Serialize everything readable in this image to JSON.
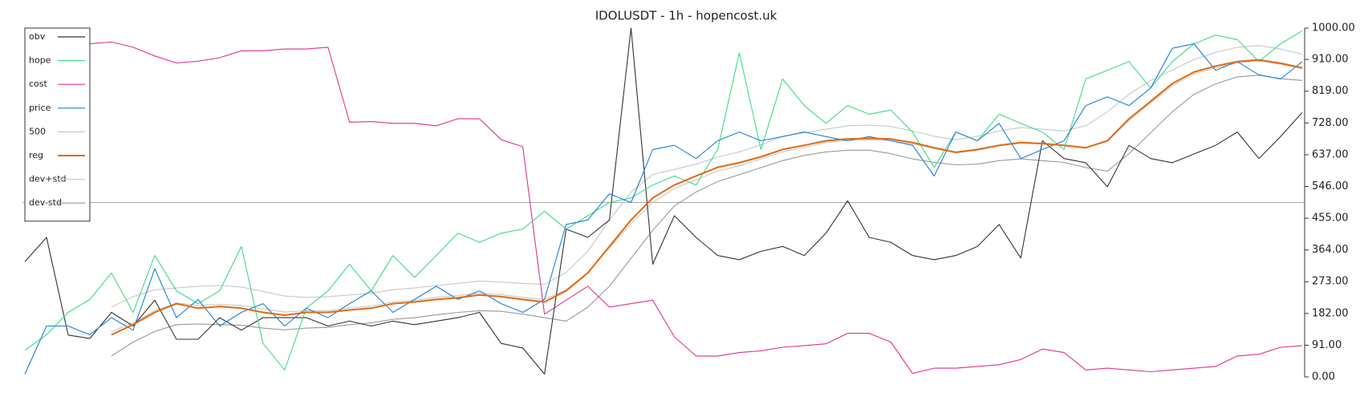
{
  "chart_data": {
    "type": "line",
    "title": "IDOLUSDT - 1h - hopencost.uk",
    "ylim": [
      0,
      1000
    ],
    "yticks": [
      {
        "value": 0,
        "label": "0.00"
      },
      {
        "value": 91,
        "label": "91.00"
      },
      {
        "value": 182,
        "label": "182.00"
      },
      {
        "value": 273,
        "label": "273.00"
      },
      {
        "value": 364,
        "label": "364.00"
      },
      {
        "value": 455,
        "label": "455.00"
      },
      {
        "value": 546,
        "label": "546.00"
      },
      {
        "value": 637,
        "label": "637.00"
      },
      {
        "value": 728,
        "label": "728.00"
      },
      {
        "value": 819,
        "label": "819.00"
      },
      {
        "value": 910,
        "label": "910.00"
      },
      {
        "value": 1000,
        "label": "1000.00"
      }
    ],
    "reference_line": 500,
    "legend": "upper-left",
    "series": [
      {
        "name": "obv",
        "color": "#333333",
        "values": [
          330,
          400,
          120,
          110,
          185,
          146,
          220,
          108,
          108,
          170,
          134,
          170,
          170,
          170,
          146,
          160,
          146,
          160,
          150,
          160,
          170,
          185,
          96,
          83,
          8,
          424,
          400,
          450,
          1000,
          323,
          462,
          400,
          348,
          336,
          360,
          374,
          348,
          412,
          505,
          400,
          386,
          348,
          336,
          348,
          374,
          437,
          341,
          677,
          626,
          614,
          545,
          664,
          626,
          614,
          639,
          664,
          702,
          626,
          689,
          758
        ]
      },
      {
        "name": "hope",
        "color": "#3ddc84",
        "values": [
          76,
          121,
          185,
          222,
          298,
          185,
          348,
          247,
          210,
          247,
          374,
          96,
          20,
          197,
          247,
          323,
          247,
          348,
          285,
          348,
          412,
          386,
          412,
          424,
          475,
          424,
          462,
          500,
          513,
          550,
          576,
          550,
          652,
          929,
          652,
          854,
          778,
          727,
          778,
          753,
          765,
          702,
          601,
          702,
          677,
          753,
          727,
          702,
          652,
          854,
          879,
          904,
          828,
          904,
          955,
          980,
          967,
          904,
          955,
          992
        ]
      },
      {
        "name": "cost",
        "color": "#e0338f",
        "values": [
          null,
          null,
          null,
          955,
          960,
          945,
          920,
          900,
          905,
          915,
          935,
          935,
          940,
          940,
          945,
          730,
          732,
          727,
          727,
          720,
          740,
          740,
          680,
          660,
          180,
          220,
          260,
          200,
          210,
          220,
          115,
          60,
          60,
          70,
          75,
          85,
          90,
          95,
          125,
          125,
          100,
          10,
          25,
          25,
          30,
          35,
          50,
          80,
          70,
          20,
          25,
          20,
          15,
          20,
          25,
          30,
          60,
          65,
          85,
          90
        ]
      },
      {
        "name": "price",
        "color": "#1f7fd8",
        "values": [
          8,
          146,
          146,
          121,
          170,
          134,
          310,
          170,
          222,
          146,
          185,
          210,
          146,
          197,
          170,
          210,
          247,
          185,
          222,
          260,
          222,
          247,
          210,
          185,
          222,
          437,
          450,
          525,
          500,
          652,
          664,
          626,
          677,
          702,
          677,
          689,
          702,
          689,
          677,
          689,
          677,
          664,
          576,
          702,
          677,
          727,
          626,
          652,
          677,
          778,
          803,
          778,
          828,
          942,
          955,
          879,
          904,
          866,
          854,
          904
        ]
      },
      {
        "name": "500",
        "color": "#c8c8c8",
        "values": [
          null,
          null,
          null,
          null,
          130,
          155,
          190,
          212,
          205,
          208,
          205,
          195,
          186,
          190,
          190,
          198,
          203,
          215,
          220,
          228,
          233,
          240,
          236,
          228,
          222,
          250,
          300,
          370,
          440,
          500,
          540,
          565,
          590,
          605,
          625,
          645,
          658,
          672,
          678,
          680,
          678,
          668,
          654,
          642,
          650,
          662,
          670,
          668,
          663,
          658,
          675,
          735,
          785,
          835,
          868,
          886,
          900,
          906,
          896,
          884
        ]
      },
      {
        "name": "reg",
        "color": "#e06a10",
        "width": 2,
        "values": [
          null,
          null,
          null,
          null,
          121,
          150,
          185,
          210,
          197,
          202,
          197,
          185,
          177,
          185,
          185,
          192,
          197,
          210,
          215,
          222,
          227,
          235,
          230,
          222,
          215,
          247,
          298,
          374,
          450,
          513,
          550,
          576,
          601,
          614,
          631,
          652,
          664,
          677,
          682,
          684,
          682,
          672,
          657,
          644,
          652,
          664,
          672,
          669,
          664,
          657,
          677,
          740,
          790,
          841,
          874,
          891,
          904,
          909,
          899,
          886
        ]
      },
      {
        "name": "dev+std",
        "color": "#c8c8c8",
        "values": [
          null,
          null,
          null,
          null,
          200,
          230,
          250,
          255,
          260,
          262,
          258,
          245,
          232,
          228,
          230,
          235,
          240,
          250,
          255,
          262,
          268,
          275,
          272,
          268,
          265,
          300,
          360,
          450,
          530,
          580,
          595,
          610,
          630,
          645,
          665,
          690,
          700,
          710,
          720,
          722,
          718,
          705,
          690,
          680,
          690,
          705,
          715,
          710,
          705,
          720,
          760,
          810,
          850,
          880,
          910,
          930,
          945,
          950,
          940,
          925
        ]
      },
      {
        "name": "dev-std",
        "color": "#999999",
        "values": [
          null,
          null,
          null,
          null,
          60,
          100,
          130,
          150,
          152,
          150,
          148,
          140,
          135,
          140,
          142,
          150,
          155,
          165,
          170,
          178,
          185,
          190,
          188,
          180,
          170,
          160,
          200,
          260,
          340,
          420,
          490,
          530,
          560,
          580,
          600,
          620,
          635,
          645,
          650,
          650,
          640,
          625,
          615,
          608,
          610,
          620,
          625,
          620,
          615,
          600,
          590,
          640,
          700,
          760,
          810,
          840,
          860,
          865,
          855,
          850
        ]
      }
    ]
  }
}
